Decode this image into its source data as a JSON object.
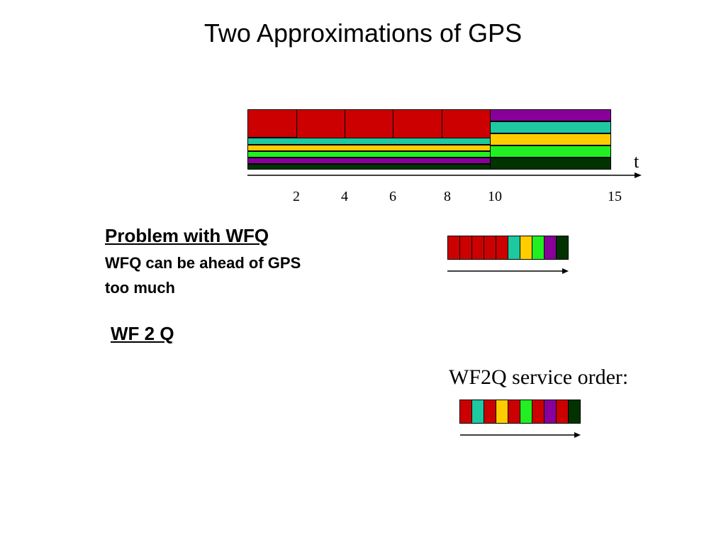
{
  "slide": {
    "title": "Two Approximations of GPS"
  },
  "gps_diagram": {
    "axis_label": "t",
    "ticks": [
      "2",
      "4",
      "6",
      "8",
      "10",
      "15"
    ],
    "colors": {
      "red": "#cc0000",
      "teal": "#1ec8a0",
      "yellow": "#ffcc00",
      "green": "#22ee22",
      "purple": "#880099",
      "dark_green": "#003300"
    }
  },
  "problem": {
    "heading": "Problem with WFQ",
    "line1": "WFQ can be ahead of GPS",
    "line2": "too much"
  },
  "wf2q": {
    "heading": "WF 2 Q",
    "service_order_label": "WF2Q service order:"
  },
  "wfq_order": [
    "red",
    "red",
    "red",
    "red",
    "red",
    "teal",
    "yellow",
    "green",
    "purple",
    "dark_green"
  ],
  "wf2q_order": [
    "red",
    "teal",
    "red",
    "yellow",
    "red",
    "green",
    "red",
    "purple",
    "red",
    "dark_green"
  ]
}
